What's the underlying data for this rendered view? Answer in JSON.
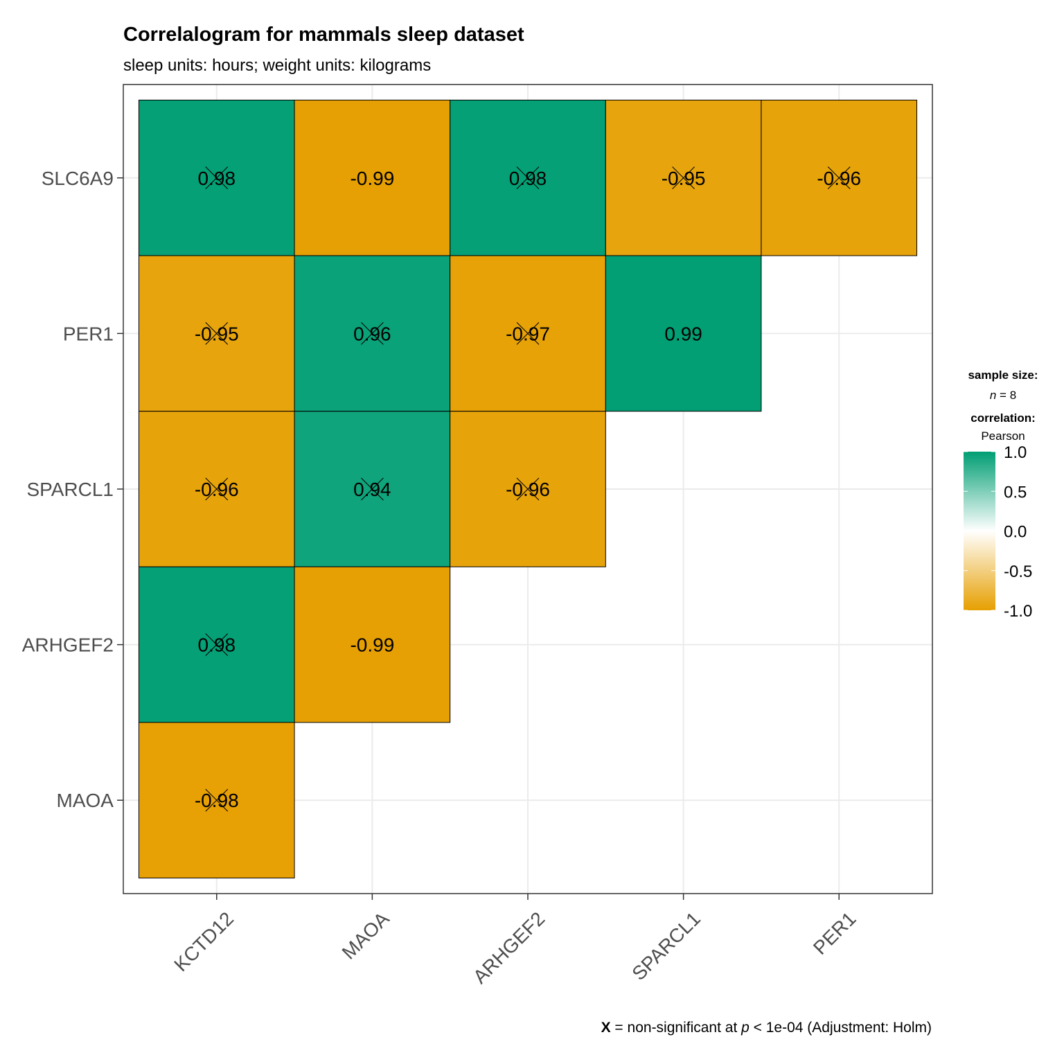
{
  "chart_data": {
    "type": "heatmap",
    "title": "Correlalogram for mammals sleep dataset",
    "subtitle": "sleep units: hours; weight units: kilograms",
    "x_categories": [
      "KCTD12",
      "MAOA",
      "ARHGEF2",
      "SPARCL1",
      "PER1"
    ],
    "y_categories": [
      "SLC6A9",
      "PER1",
      "SPARCL1",
      "ARHGEF2",
      "MAOA"
    ],
    "cells": [
      {
        "x": "KCTD12",
        "y": "SLC6A9",
        "value": 0.98,
        "label": "0.98",
        "nonsignificant": true
      },
      {
        "x": "MAOA",
        "y": "SLC6A9",
        "value": -0.99,
        "label": "-0.99",
        "nonsignificant": false
      },
      {
        "x": "ARHGEF2",
        "y": "SLC6A9",
        "value": 0.98,
        "label": "0.98",
        "nonsignificant": true
      },
      {
        "x": "SPARCL1",
        "y": "SLC6A9",
        "value": -0.95,
        "label": "-0.95",
        "nonsignificant": true
      },
      {
        "x": "PER1",
        "y": "SLC6A9",
        "value": -0.96,
        "label": "-0.96",
        "nonsignificant": true
      },
      {
        "x": "KCTD12",
        "y": "PER1",
        "value": -0.95,
        "label": "-0.95",
        "nonsignificant": true
      },
      {
        "x": "MAOA",
        "y": "PER1",
        "value": 0.96,
        "label": "0.96",
        "nonsignificant": true
      },
      {
        "x": "ARHGEF2",
        "y": "PER1",
        "value": -0.97,
        "label": "-0.97",
        "nonsignificant": true
      },
      {
        "x": "SPARCL1",
        "y": "PER1",
        "value": 0.99,
        "label": "0.99",
        "nonsignificant": false
      },
      {
        "x": "KCTD12",
        "y": "SPARCL1",
        "value": -0.96,
        "label": "-0.96",
        "nonsignificant": true
      },
      {
        "x": "MAOA",
        "y": "SPARCL1",
        "value": 0.94,
        "label": "0.94",
        "nonsignificant": true
      },
      {
        "x": "ARHGEF2",
        "y": "SPARCL1",
        "value": -0.96,
        "label": "-0.96",
        "nonsignificant": true
      },
      {
        "x": "KCTD12",
        "y": "ARHGEF2",
        "value": 0.98,
        "label": "0.98",
        "nonsignificant": true
      },
      {
        "x": "MAOA",
        "y": "ARHGEF2",
        "value": -0.99,
        "label": "-0.99",
        "nonsignificant": false
      },
      {
        "x": "KCTD12",
        "y": "MAOA",
        "value": -0.98,
        "label": "-0.98",
        "nonsignificant": true
      }
    ],
    "color_scale": {
      "low": "#E69F00",
      "mid": "#FFFFFF",
      "high": "#009E73",
      "limits": [
        -1,
        1
      ]
    },
    "legend": {
      "position": "right",
      "sample_size_title": "sample size:",
      "sample_size_n": "n",
      "sample_size_value": "= 8",
      "correlation_title": "correlation:",
      "correlation_method": "Pearson",
      "ticks": [
        "1.0",
        "0.5",
        "0.0",
        "-0.5",
        "-1.0"
      ]
    },
    "caption": {
      "mark": "X",
      "text_before": " = non-significant at ",
      "p_symbol": "p",
      "text_after": " < 1e-04 (Adjustment: Holm)"
    },
    "grid": true
  }
}
